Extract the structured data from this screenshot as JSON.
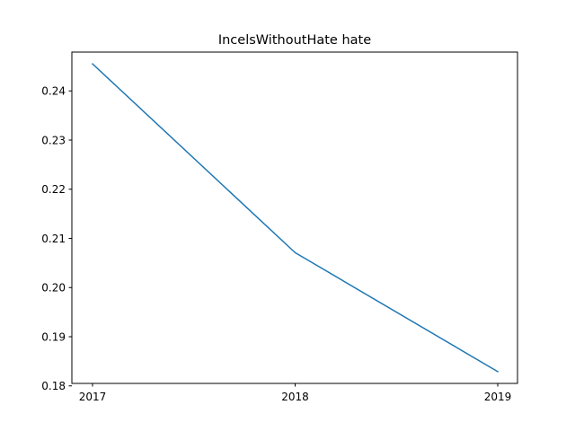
{
  "chart_data": {
    "type": "line",
    "title": "IncelsWithoutHate hate",
    "xlabel": "",
    "ylabel": "",
    "x": [
      "2017",
      "2018",
      "2019"
    ],
    "series": [
      {
        "values": [
          0.2455,
          0.2071,
          0.1829
        ],
        "color": "#1f77b4"
      }
    ],
    "ylim": [
      0.1805,
      0.2479
    ],
    "yticks": [
      "0.18",
      "0.19",
      "0.20",
      "0.21",
      "0.22",
      "0.23",
      "0.24"
    ],
    "xticks": [
      "2017",
      "2018",
      "2019"
    ],
    "grid": false,
    "legend": "none"
  }
}
